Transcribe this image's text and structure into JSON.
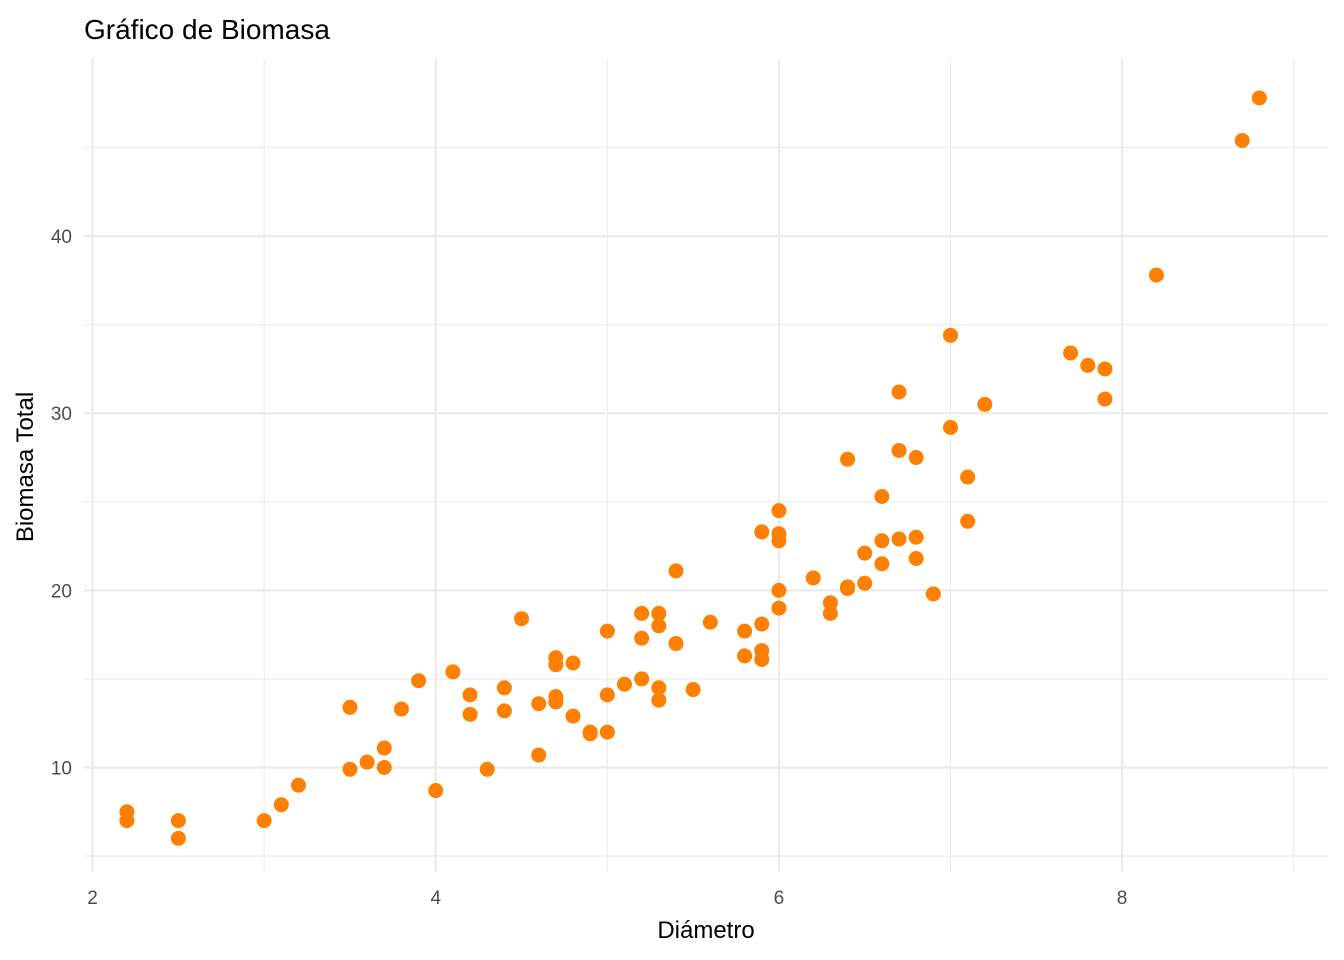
{
  "chart_data": {
    "type": "scatter",
    "title": "Gráfico de Biomasa",
    "xlabel": "Diámetro",
    "ylabel": "Biomasa Total",
    "xlim": [
      1.95,
      9.2
    ],
    "ylim": [
      4.1,
      50.0
    ],
    "x_ticks": [
      2,
      4,
      6,
      8
    ],
    "y_ticks": [
      10,
      20,
      30,
      40
    ],
    "x_tick_labels": [
      "2",
      "4",
      "6",
      "8"
    ],
    "y_tick_labels": [
      "10",
      "20",
      "30",
      "40"
    ],
    "grid": true,
    "legend": "none",
    "point_color": "#FF7F00",
    "points": [
      [
        2.2,
        7.5
      ],
      [
        2.2,
        7.0
      ],
      [
        2.5,
        7.0
      ],
      [
        2.5,
        6.0
      ],
      [
        3.0,
        7.0
      ],
      [
        3.1,
        7.9
      ],
      [
        3.2,
        9.0
      ],
      [
        3.5,
        13.4
      ],
      [
        3.5,
        9.9
      ],
      [
        3.6,
        10.3
      ],
      [
        3.7,
        11.1
      ],
      [
        3.7,
        10.0
      ],
      [
        3.8,
        13.3
      ],
      [
        3.9,
        14.9
      ],
      [
        4.0,
        8.7
      ],
      [
        4.1,
        15.4
      ],
      [
        4.2,
        14.1
      ],
      [
        4.2,
        13.0
      ],
      [
        4.3,
        9.9
      ],
      [
        4.4,
        14.5
      ],
      [
        4.4,
        13.2
      ],
      [
        4.5,
        18.4
      ],
      [
        4.6,
        13.6
      ],
      [
        4.6,
        10.7
      ],
      [
        4.7,
        16.2
      ],
      [
        4.7,
        15.8
      ],
      [
        4.7,
        14.0
      ],
      [
        4.7,
        13.7
      ],
      [
        4.8,
        15.9
      ],
      [
        4.8,
        12.9
      ],
      [
        4.9,
        12.0
      ],
      [
        4.9,
        11.9
      ],
      [
        5.0,
        17.7
      ],
      [
        5.0,
        14.1
      ],
      [
        5.0,
        12.0
      ],
      [
        5.1,
        14.7
      ],
      [
        5.2,
        18.7
      ],
      [
        5.2,
        17.3
      ],
      [
        5.2,
        15.0
      ],
      [
        5.3,
        18.7
      ],
      [
        5.3,
        18.0
      ],
      [
        5.3,
        14.5
      ],
      [
        5.3,
        13.8
      ],
      [
        5.4,
        21.1
      ],
      [
        5.4,
        17.0
      ],
      [
        5.5,
        14.4
      ],
      [
        5.6,
        18.2
      ],
      [
        5.8,
        17.7
      ],
      [
        5.8,
        16.3
      ],
      [
        5.9,
        23.3
      ],
      [
        5.9,
        18.1
      ],
      [
        5.9,
        16.6
      ],
      [
        5.9,
        16.1
      ],
      [
        6.0,
        24.5
      ],
      [
        6.0,
        23.2
      ],
      [
        6.0,
        22.8
      ],
      [
        6.0,
        20.0
      ],
      [
        6.0,
        19.0
      ],
      [
        6.2,
        20.7
      ],
      [
        6.3,
        19.3
      ],
      [
        6.3,
        18.7
      ],
      [
        6.4,
        27.4
      ],
      [
        6.4,
        20.2
      ],
      [
        6.4,
        20.1
      ],
      [
        6.5,
        22.1
      ],
      [
        6.5,
        20.4
      ],
      [
        6.6,
        25.3
      ],
      [
        6.6,
        22.8
      ],
      [
        6.6,
        21.5
      ],
      [
        6.7,
        31.2
      ],
      [
        6.7,
        27.9
      ],
      [
        6.7,
        22.9
      ],
      [
        6.8,
        27.5
      ],
      [
        6.8,
        23.0
      ],
      [
        6.8,
        21.8
      ],
      [
        6.9,
        19.8
      ],
      [
        7.0,
        34.4
      ],
      [
        7.0,
        29.2
      ],
      [
        7.1,
        26.4
      ],
      [
        7.1,
        23.9
      ],
      [
        7.2,
        30.5
      ],
      [
        7.7,
        33.4
      ],
      [
        7.8,
        32.7
      ],
      [
        7.9,
        32.5
      ],
      [
        7.9,
        30.8
      ],
      [
        8.2,
        37.8
      ],
      [
        8.7,
        45.4
      ],
      [
        8.8,
        47.8
      ]
    ]
  }
}
